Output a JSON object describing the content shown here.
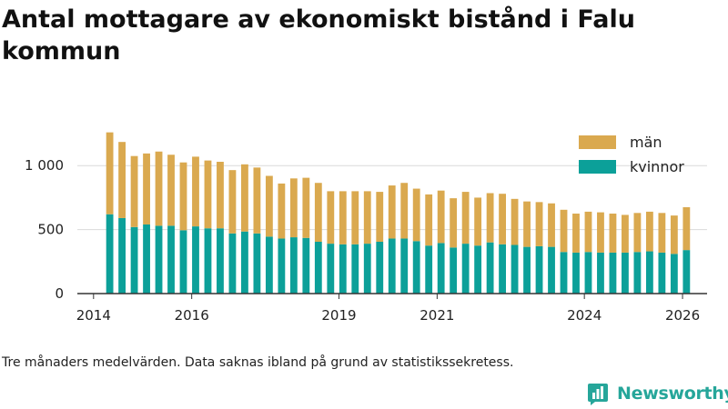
{
  "title": "Antal mottagare av ekonomiskt bistånd i Falu kommun",
  "note": "Tre månaders medelvärden. Data saknas ibland på grund av statistikssekretess.",
  "brand": {
    "name": "Newsworthy",
    "logo_icon": "bar-chart-pin-icon"
  },
  "colors": {
    "men": "#daa94f",
    "women": "#0ca099",
    "axis": "#333333",
    "grid": "#d9d9d9",
    "brand": "#26a69a"
  },
  "chart_data": {
    "type": "bar",
    "stacked": true,
    "title": "Antal mottagare av ekonomiskt bistånd i Falu kommun",
    "xlabel": "",
    "ylabel": "",
    "ylim": [
      0,
      1300
    ],
    "xlim": [
      2013.67,
      2026.5
    ],
    "y_ticks": [
      0,
      500,
      1000
    ],
    "y_tick_labels": [
      "0",
      "500",
      "1 000"
    ],
    "x_ticks": [
      2014,
      2016,
      2019,
      2021,
      2024,
      2026
    ],
    "x_tick_labels": [
      "2014",
      "2016",
      "2019",
      "2021",
      "2024",
      "2026"
    ],
    "legend_position": "top-right",
    "x": [
      2014.33,
      2014.58,
      2014.83,
      2015.08,
      2015.33,
      2015.58,
      2015.83,
      2016.08,
      2016.33,
      2016.58,
      2016.83,
      2017.08,
      2017.33,
      2017.58,
      2017.83,
      2018.08,
      2018.33,
      2018.58,
      2018.83,
      2019.08,
      2019.33,
      2019.58,
      2019.83,
      2020.08,
      2020.33,
      2020.58,
      2020.83,
      2021.08,
      2021.33,
      2021.58,
      2021.83,
      2022.08,
      2022.33,
      2022.58,
      2022.83,
      2023.08,
      2023.33,
      2023.58,
      2023.83,
      2024.08,
      2024.33,
      2024.58,
      2024.83,
      2025.08,
      2025.33,
      2025.58,
      2025.83,
      2026.08
    ],
    "series": [
      {
        "name": "kvinnor",
        "values": [
          620,
          590,
          520,
          540,
          530,
          530,
          495,
          525,
          510,
          510,
          470,
          485,
          470,
          445,
          430,
          440,
          435,
          405,
          390,
          385,
          385,
          390,
          405,
          430,
          430,
          410,
          375,
          395,
          360,
          390,
          375,
          400,
          385,
          380,
          365,
          370,
          365,
          325,
          320,
          325,
          320,
          320,
          320,
          325,
          330,
          320,
          310,
          340
        ]
      },
      {
        "name": "män",
        "values": [
          640,
          595,
          555,
          555,
          580,
          555,
          530,
          545,
          530,
          520,
          495,
          525,
          515,
          475,
          430,
          460,
          470,
          460,
          410,
          415,
          415,
          410,
          390,
          415,
          435,
          410,
          400,
          410,
          385,
          405,
          375,
          385,
          395,
          360,
          355,
          345,
          340,
          330,
          305,
          315,
          315,
          305,
          295,
          305,
          310,
          310,
          300,
          335
        ]
      }
    ]
  }
}
